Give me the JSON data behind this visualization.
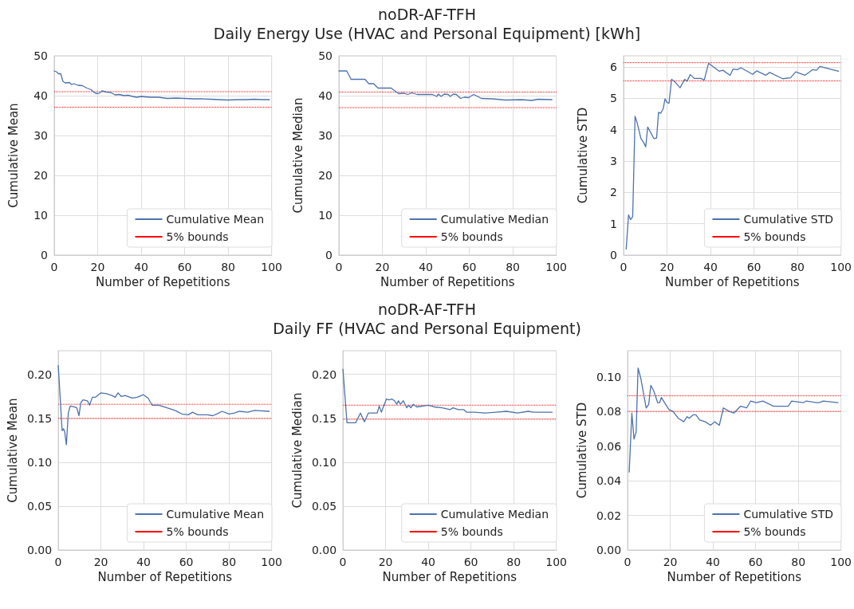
{
  "chart_data": [
    {
      "type": "line",
      "xlabel": "Number of Repetitions",
      "ylabel": "Cumulative Mean",
      "xlim": [
        0,
        100
      ],
      "xticks": [
        0,
        20,
        40,
        60,
        80,
        100
      ],
      "ylim": [
        0,
        50
      ],
      "yticks": [
        0,
        10,
        20,
        30,
        40,
        50
      ],
      "grid": true,
      "legend": "bottom right",
      "line_style": "solid",
      "marker": "none",
      "series": [
        {
          "name": "Cumulative Mean",
          "color": "#4c72b0",
          "x": [
            0,
            1,
            2,
            3,
            4,
            5,
            7,
            8,
            9,
            11,
            13,
            15,
            17,
            18,
            19,
            20,
            21,
            22,
            24,
            26,
            28,
            30,
            32,
            34,
            36,
            38,
            40,
            44,
            48,
            52,
            56,
            60,
            64,
            68,
            72,
            76,
            80,
            84,
            88,
            92,
            96,
            99
          ],
          "values": [
            46.2,
            46.0,
            45.5,
            45.5,
            43.6,
            43.2,
            43.3,
            42.8,
            43.0,
            42.6,
            42.5,
            41.9,
            41.5,
            41.0,
            40.6,
            40.5,
            40.7,
            41.2,
            40.9,
            40.8,
            40.2,
            40.3,
            40.0,
            40.1,
            39.8,
            39.6,
            39.8,
            39.6,
            39.6,
            39.3,
            39.4,
            39.3,
            39.2,
            39.2,
            39.1,
            39.0,
            38.9,
            39.0,
            39.0,
            39.1,
            39.0,
            39.0
          ]
        }
      ],
      "ref_lines": [
        {
          "axis": "y",
          "value": 41.0,
          "label": "5% bounds",
          "color": "#ff0000",
          "line_style": "dotted"
        },
        {
          "axis": "y",
          "value": 37.1,
          "color": "#ff0000",
          "line_style": "dotted"
        }
      ]
    },
    {
      "type": "line",
      "title": "noDR-AF-TFH",
      "subtitle": "Daily Energy Use (HVAC and Personal Equipment) [kWh]",
      "xlabel": "Number of Repetitions",
      "ylabel": "Cumulative Median",
      "xlim": [
        0,
        100
      ],
      "xticks": [
        0,
        20,
        40,
        60,
        80,
        100
      ],
      "ylim": [
        0,
        50
      ],
      "yticks": [
        0,
        10,
        20,
        30,
        40,
        50
      ],
      "grid": true,
      "legend": "bottom right",
      "line_style": "solid",
      "marker": "none",
      "series": [
        {
          "name": "Cumulative Median",
          "color": "#4c72b0",
          "x": [
            0,
            3.6,
            5.6,
            12,
            13.8,
            16,
            18,
            24,
            27.5,
            30,
            31.7,
            33.5,
            36,
            43,
            45,
            45.8,
            47,
            48.5,
            50.3,
            51.2,
            52.7,
            54,
            56,
            57.6,
            59.6,
            62,
            65.6,
            70.7,
            76.6,
            84,
            88.6,
            91.6,
            98
          ],
          "values": [
            46.2,
            46.2,
            44.1,
            44.1,
            43.0,
            43.0,
            41.9,
            41.9,
            40.5,
            40.6,
            40.3,
            40.7,
            40.3,
            40.3,
            39.8,
            40.4,
            39.8,
            40.4,
            40.3,
            39.8,
            40.4,
            40.3,
            39.3,
            39.6,
            39.5,
            40.3,
            39.3,
            39.2,
            38.9,
            39.0,
            38.8,
            39.1,
            39.0
          ]
        }
      ],
      "ref_lines": [
        {
          "axis": "y",
          "value": 40.9,
          "label": "5% bounds",
          "color": "#ff0000",
          "line_style": "dotted"
        },
        {
          "axis": "y",
          "value": 37.0,
          "color": "#ff0000",
          "line_style": "dotted"
        }
      ]
    },
    {
      "type": "line",
      "xlabel": "Number of Repetitions",
      "ylabel": "Cumulative STD",
      "xlim": [
        0,
        100
      ],
      "xticks": [
        0,
        20,
        40,
        60,
        80,
        100
      ],
      "ylim": [
        0,
        6.35
      ],
      "yticks": [
        0,
        1,
        2,
        3,
        4,
        5,
        6
      ],
      "grid": true,
      "legend": "bottom right",
      "line_style": "solid",
      "marker": "none",
      "series": [
        {
          "name": "Cumulative STD",
          "color": "#4c72b0",
          "x": [
            1.2,
            2.3,
            3.2,
            4.2,
            5.3,
            6.2,
            8,
            9.2,
            10.2,
            11.1,
            14,
            15.2,
            16.1,
            17.1,
            18.2,
            19.1,
            20,
            20.9,
            22.1,
            23.6,
            26,
            28.1,
            29.2,
            30.7,
            32.5,
            35.5,
            37.1,
            39.1,
            40.3,
            43.9,
            45.7,
            49,
            50.4,
            52.3,
            54,
            59.4,
            61.2,
            65.4,
            67.2,
            73.2,
            76.8,
            79.2,
            83.4,
            87,
            88.8,
            90.3,
            95.3,
            98.9
          ],
          "values": [
            0.19,
            1.28,
            1.13,
            1.22,
            4.42,
            4.23,
            3.71,
            3.59,
            3.45,
            4.08,
            3.71,
            3.73,
            4.55,
            4.52,
            4.66,
            4.98,
            4.86,
            4.84,
            5.6,
            5.52,
            5.33,
            5.6,
            5.54,
            5.75,
            5.63,
            5.63,
            5.58,
            6.11,
            6.05,
            5.86,
            5.89,
            5.73,
            5.93,
            5.91,
            5.97,
            5.76,
            5.87,
            5.73,
            5.82,
            5.62,
            5.65,
            5.84,
            5.73,
            5.91,
            5.89,
            6.01,
            5.92,
            5.86
          ]
        }
      ],
      "ref_lines": [
        {
          "axis": "y",
          "value": 6.13,
          "label": "5% bounds",
          "color": "#ff0000",
          "line_style": "dotted"
        },
        {
          "axis": "y",
          "value": 5.55,
          "color": "#ff0000",
          "line_style": "dotted"
        }
      ]
    },
    {
      "type": "line",
      "xlabel": "Number of Repetitions",
      "ylabel": "Cumulative Mean",
      "xlim": [
        0,
        100
      ],
      "xticks": [
        0,
        20,
        40,
        60,
        80,
        100
      ],
      "ylim": [
        0,
        0.227
      ],
      "yticks": [
        {
          "value": 0,
          "label": "0.00"
        },
        {
          "value": 0.05,
          "label": "0.05"
        },
        {
          "value": 0.1,
          "label": "0.10"
        },
        {
          "value": 0.15,
          "label": "0.15"
        },
        {
          "value": 0.2,
          "label": "0.20"
        }
      ],
      "grid": true,
      "legend": "bottom right",
      "line_style": "solid",
      "marker": "none",
      "series": [
        {
          "name": "Cumulative Mean",
          "color": "#4c72b0",
          "x": [
            0,
            1.8,
            2.5,
            3,
            3.8,
            4.7,
            5.6,
            7.4,
            8.7,
            9.7,
            10.6,
            11.6,
            13.7,
            14.6,
            16,
            17.5,
            20,
            22.6,
            25.1,
            26.7,
            28,
            29.5,
            31.4,
            34.6,
            37,
            39.8,
            42.1,
            44,
            47.2,
            51,
            54.7,
            57.9,
            61,
            62.9,
            65.4,
            69.9,
            72.4,
            74.3,
            76.8,
            80,
            82.5,
            85,
            88.8,
            91.9,
            98.9
          ],
          "values": [
            0.21,
            0.136,
            0.138,
            0.135,
            0.12,
            0.156,
            0.164,
            0.163,
            0.162,
            0.153,
            0.168,
            0.171,
            0.17,
            0.165,
            0.174,
            0.174,
            0.179,
            0.178,
            0.176,
            0.174,
            0.179,
            0.175,
            0.176,
            0.173,
            0.174,
            0.177,
            0.173,
            0.165,
            0.165,
            0.162,
            0.159,
            0.155,
            0.154,
            0.157,
            0.154,
            0.154,
            0.153,
            0.155,
            0.158,
            0.155,
            0.156,
            0.158,
            0.157,
            0.159,
            0.158
          ]
        }
      ],
      "ref_lines": [
        {
          "axis": "y",
          "value": 0.166,
          "label": "5% bounds",
          "color": "#ff0000",
          "line_style": "dotted"
        },
        {
          "axis": "y",
          "value": 0.15,
          "color": "#ff0000",
          "line_style": "dotted"
        }
      ]
    },
    {
      "type": "line",
      "title": "noDR-AF-TFH",
      "subtitle": "Daily FF (HVAC and Personal Equipment)",
      "xlabel": "Number of Repetitions",
      "ylabel": "Cumulative Median",
      "xlim": [
        0,
        100
      ],
      "xticks": [
        0,
        20,
        40,
        60,
        80,
        100
      ],
      "ylim": [
        0,
        0.227
      ],
      "yticks": [
        {
          "value": 0,
          "label": "0.00"
        },
        {
          "value": 0.05,
          "label": "0.05"
        },
        {
          "value": 0.1,
          "label": "0.10"
        },
        {
          "value": 0.15,
          "label": "0.15"
        },
        {
          "value": 0.2,
          "label": "0.20"
        }
      ],
      "grid": true,
      "legend": "bottom right",
      "line_style": "solid",
      "marker": "none",
      "series": [
        {
          "name": "Cumulative Median",
          "color": "#4c72b0",
          "x": [
            0,
            1.9,
            6,
            8.2,
            10.1,
            11.9,
            16.1,
            17,
            18,
            20.4,
            21.6,
            22.9,
            24.2,
            25.2,
            26,
            27,
            28.3,
            29.9,
            30.8,
            31.8,
            33,
            34.6,
            40,
            42.8,
            46.5,
            50.3,
            51.6,
            54.1,
            56.6,
            57.9,
            61.6,
            66.7,
            71.7,
            76.7,
            81.8,
            86.8,
            89.3,
            98.1
          ],
          "values": [
            0.206,
            0.145,
            0.145,
            0.156,
            0.146,
            0.156,
            0.156,
            0.164,
            0.157,
            0.172,
            0.171,
            0.172,
            0.17,
            0.166,
            0.17,
            0.166,
            0.17,
            0.162,
            0.165,
            0.162,
            0.166,
            0.163,
            0.165,
            0.163,
            0.162,
            0.16,
            0.162,
            0.16,
            0.16,
            0.157,
            0.157,
            0.156,
            0.157,
            0.158,
            0.156,
            0.158,
            0.157,
            0.157
          ]
        }
      ],
      "ref_lines": [
        {
          "axis": "y",
          "value": 0.165,
          "label": "5% bounds",
          "color": "#ff0000",
          "line_style": "dotted"
        },
        {
          "axis": "y",
          "value": 0.149,
          "color": "#ff0000",
          "line_style": "dotted"
        }
      ]
    },
    {
      "type": "line",
      "xlabel": "Number of Repetitions",
      "ylabel": "Cumulative STD",
      "xlim": [
        0,
        100
      ],
      "xticks": [
        0,
        20,
        40,
        60,
        80,
        100
      ],
      "ylim": [
        0,
        0.115
      ],
      "yticks": [
        {
          "value": 0,
          "label": "0.00"
        },
        {
          "value": 0.02,
          "label": "0.02"
        },
        {
          "value": 0.04,
          "label": "0.04"
        },
        {
          "value": 0.06,
          "label": "0.06"
        },
        {
          "value": 0.08,
          "label": "0.08"
        },
        {
          "value": 0.1,
          "label": "0.10"
        }
      ],
      "grid": true,
      "legend": "bottom right",
      "line_style": "solid",
      "marker": "none",
      "series": [
        {
          "name": "Cumulative STD",
          "color": "#4c72b0",
          "x": [
            0.75,
            2,
            3,
            4,
            4.9,
            6.2,
            8.7,
            9.9,
            10.9,
            12.2,
            14.1,
            15,
            15.8,
            19.4,
            21.3,
            23.8,
            26.3,
            27.9,
            28.8,
            30.7,
            32,
            33.8,
            36.4,
            38.9,
            40.8,
            43,
            44.9,
            47.7,
            49.8,
            53,
            55.8,
            57.7,
            60.3,
            63.4,
            68.4,
            71.6,
            75.3,
            76.9,
            82.3,
            83.8,
            88.6,
            89.8,
            91.7,
            98.6
          ],
          "values": [
            0.045,
            0.079,
            0.064,
            0.068,
            0.105,
            0.099,
            0.082,
            0.084,
            0.095,
            0.092,
            0.085,
            0.085,
            0.088,
            0.081,
            0.08,
            0.076,
            0.074,
            0.077,
            0.076,
            0.078,
            0.078,
            0.075,
            0.074,
            0.072,
            0.074,
            0.072,
            0.082,
            0.08,
            0.079,
            0.083,
            0.082,
            0.086,
            0.085,
            0.086,
            0.083,
            0.083,
            0.083,
            0.086,
            0.085,
            0.086,
            0.085,
            0.085,
            0.086,
            0.085
          ]
        }
      ],
      "ref_lines": [
        {
          "axis": "y",
          "value": 0.089,
          "label": "5% bounds",
          "color": "#ff0000",
          "line_style": "dotted"
        },
        {
          "axis": "y",
          "value": 0.08,
          "color": "#ff0000",
          "line_style": "dotted"
        }
      ]
    }
  ]
}
